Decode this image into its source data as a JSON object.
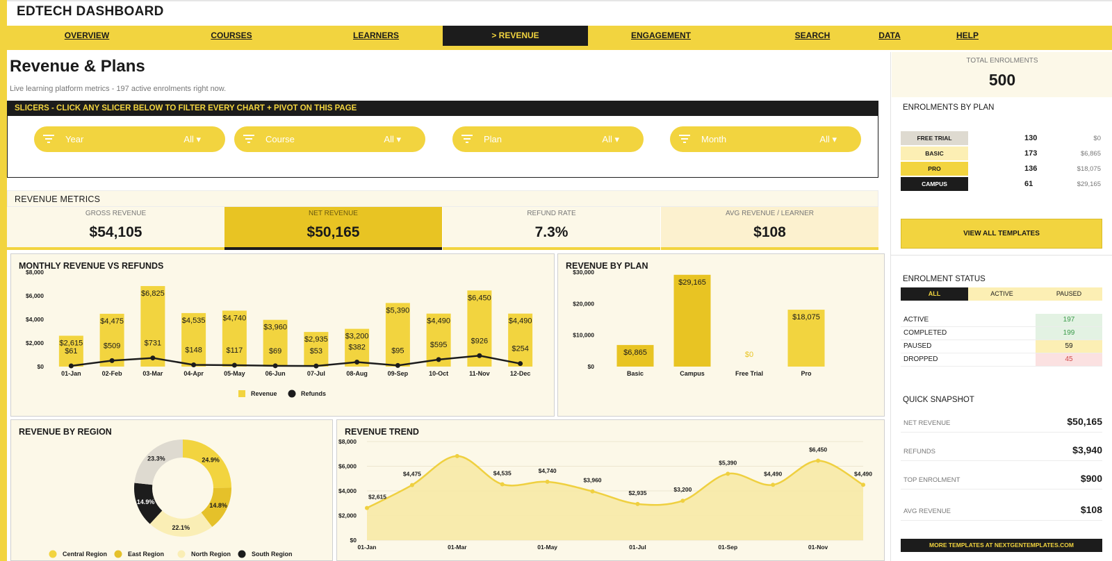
{
  "app": {
    "title": "EDTECH DASHBOARD"
  },
  "nav": [
    {
      "label": "OVERVIEW"
    },
    {
      "label": "COURSES"
    },
    {
      "label": "LEARNERS"
    },
    {
      "label": "> REVENUE",
      "active": true
    },
    {
      "label": "ENGAGEMENT"
    },
    {
      "label": "SEARCH"
    },
    {
      "label": "DATA"
    },
    {
      "label": "HELP"
    }
  ],
  "page": {
    "title": "Revenue & Plans",
    "subtitle": "Live learning platform metrics  -  197 active enrolments right now."
  },
  "slicers": {
    "header": "SLICERS  -  CLICK ANY SLICER BELOW TO FILTER EVERY CHART + PIVOT ON THIS PAGE",
    "items": [
      {
        "label": "Year",
        "value": "All ▾"
      },
      {
        "label": "Course",
        "value": "All ▾"
      },
      {
        "label": "Plan",
        "value": "All ▾"
      },
      {
        "label": "Month",
        "value": "All ▾"
      }
    ]
  },
  "metrics": {
    "header": "REVENUE METRICS",
    "items": [
      {
        "label": "GROSS REVENUE",
        "value": "$54,105"
      },
      {
        "label": "NET REVENUE",
        "value": "$50,165"
      },
      {
        "label": "REFUND RATE",
        "value": "7.3%"
      },
      {
        "label": "AVG REVENUE / LEARNER",
        "value": "$108"
      }
    ]
  },
  "colors": {
    "accent": "#f2d43f",
    "accent_dark": "#e8c423",
    "panel_bg": "#fcf8e8",
    "dark": "#1c1c1c",
    "grey_plan": "#dedad0",
    "light_plan": "#fcefb4"
  },
  "chart_data": [
    {
      "id": "monthly",
      "type": "bar",
      "title": "MONTHLY REVENUE VS REFUNDS",
      "categories": [
        "01-Jan",
        "02-Feb",
        "03-Mar",
        "04-Apr",
        "05-May",
        "06-Jun",
        "07-Jul",
        "08-Aug",
        "09-Sep",
        "10-Oct",
        "11-Nov",
        "12-Dec"
      ],
      "series": [
        {
          "name": "Revenue",
          "type": "bar",
          "values": [
            2615,
            4475,
            6825,
            4535,
            4740,
            3960,
            2935,
            3200,
            5390,
            4490,
            6450,
            4490
          ],
          "labels": [
            "$2,615",
            "$4,475",
            "$6,825",
            "$4,535",
            "$4,740",
            "$3,960",
            "$2,935",
            "$3,200",
            "$5,390",
            "$4,490",
            "$6,450",
            "$4,490"
          ]
        },
        {
          "name": "Refunds",
          "type": "line",
          "values": [
            61,
            509,
            731,
            148,
            117,
            69,
            53,
            382,
            95,
            595,
            926,
            254
          ],
          "labels": [
            "$61",
            "$509",
            "$731",
            "$148",
            "$117",
            "$69",
            "$53",
            "$382",
            "$95",
            "$595",
            "$926",
            "$254"
          ]
        }
      ],
      "ylim": [
        0,
        8000
      ],
      "yticks": [
        "$0",
        "$2,000",
        "$4,000",
        "$6,000",
        "$8,000"
      ],
      "legend": "bottom"
    },
    {
      "id": "byplan",
      "type": "bar",
      "title": "REVENUE BY PLAN",
      "categories": [
        "Basic",
        "Campus",
        "Free Trial",
        "Pro"
      ],
      "values": [
        6865,
        29165,
        0,
        18075
      ],
      "labels": [
        "$6,865",
        "$29,165",
        "$0",
        "$18,075"
      ],
      "ylim": [
        0,
        30000
      ],
      "yticks": [
        "$0",
        "$10,000",
        "$20,000",
        "$30,000"
      ]
    },
    {
      "id": "region",
      "type": "pie",
      "title": "REVENUE BY REGION",
      "slices": [
        {
          "name": "Central Region",
          "value": 24.9,
          "label": "24.9%",
          "color": "#f2d43f"
        },
        {
          "name": "East Region",
          "value": 14.8,
          "label": "14.8%",
          "color": "#e5c12a"
        },
        {
          "name": "North Region",
          "value": 22.1,
          "label": "22.1%",
          "color": "#faeeb5"
        },
        {
          "name": "South Region",
          "value": 14.9,
          "label": "14.9%",
          "color": "#1c1c1c"
        },
        {
          "name": "",
          "value": 23.3,
          "label": "23.3%",
          "color": "#dedad0"
        }
      ],
      "legend": "bottom"
    },
    {
      "id": "trend",
      "type": "area",
      "title": "REVENUE TREND",
      "x": [
        "01-Jan",
        "02-Feb",
        "03-Mar",
        "04-Apr",
        "05-May",
        "06-Jun",
        "07-Jul",
        "08-Aug",
        "09-Sep",
        "10-Oct",
        "11-Nov",
        "12-Dec"
      ],
      "values": [
        2615,
        4475,
        6825,
        4535,
        4740,
        3960,
        2935,
        3200,
        5390,
        4490,
        6450,
        4490
      ],
      "labels": [
        "$2,615",
        "$4,475",
        "",
        "$4,535",
        "$4,740",
        "$3,960",
        "$2,935",
        "$3,200",
        "$5,390",
        "$4,490",
        "$6,450",
        "$4,490"
      ],
      "xticks": [
        "01-Jan",
        "01-Mar",
        "01-May",
        "01-Jul",
        "01-Sep",
        "01-Nov"
      ],
      "ylim": [
        0,
        8000
      ],
      "yticks": [
        "$0",
        "$2,000",
        "$4,000",
        "$6,000",
        "$8,000"
      ]
    }
  ],
  "sidebar": {
    "total": {
      "label": "TOTAL ENROLMENTS",
      "value": "500"
    },
    "plans_title": "ENROLMENTS BY PLAN",
    "plans": [
      {
        "name": "FREE TRIAL",
        "count": "130",
        "amount": "$0"
      },
      {
        "name": "BASIC",
        "count": "173",
        "amount": "$6,865"
      },
      {
        "name": "PRO",
        "count": "136",
        "amount": "$18,075"
      },
      {
        "name": "CAMPUS",
        "count": "61",
        "amount": "$29,165"
      }
    ],
    "view_templates": "VIEW ALL TEMPLATES",
    "status_title": "ENROLMENT STATUS",
    "status_tabs": [
      "ALL",
      "ACTIVE",
      "PAUSED"
    ],
    "status": [
      {
        "label": "ACTIVE",
        "value": "197"
      },
      {
        "label": "COMPLETED",
        "value": "199"
      },
      {
        "label": "PAUSED",
        "value": "59"
      },
      {
        "label": "DROPPED",
        "value": "45"
      }
    ],
    "snapshot_title": "QUICK SNAPSHOT",
    "snapshot": [
      {
        "label": "NET REVENUE",
        "value": "$50,165"
      },
      {
        "label": "REFUNDS",
        "value": "$3,940"
      },
      {
        "label": "TOP ENROLMENT",
        "value": "$900"
      },
      {
        "label": "AVG REVENUE",
        "value": "$108"
      }
    ],
    "footer": "MORE TEMPLATES AT NEXTGENTEMPLATES.COM"
  }
}
